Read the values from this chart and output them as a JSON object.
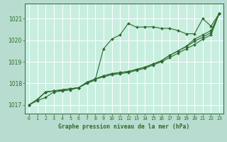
{
  "background_color": "#b8ddd0",
  "plot_bg_color": "#c8eee0",
  "grid_color": "#ffffff",
  "line_color": "#2d6a2d",
  "title": "Graphe pression niveau de la mer (hPa)",
  "xlim": [
    -0.5,
    23.5
  ],
  "ylim": [
    1016.6,
    1021.7
  ],
  "yticks": [
    1017,
    1018,
    1019,
    1020,
    1021
  ],
  "xticks": [
    0,
    1,
    2,
    3,
    4,
    5,
    6,
    7,
    8,
    9,
    10,
    11,
    12,
    13,
    14,
    15,
    16,
    17,
    18,
    19,
    20,
    21,
    22,
    23
  ],
  "series": [
    [
      1017.0,
      1017.2,
      1017.35,
      1017.6,
      1017.65,
      1017.7,
      1017.8,
      1018.0,
      1018.15,
      1019.6,
      1020.05,
      1020.25,
      1020.78,
      1020.6,
      1020.62,
      1020.62,
      1020.55,
      1020.55,
      1020.45,
      1020.3,
      1020.3,
      1021.0,
      1020.65,
      1021.25
    ],
    [
      1017.0,
      1017.25,
      1017.6,
      1017.65,
      1017.7,
      1017.75,
      1017.8,
      1018.05,
      1018.2,
      1018.3,
      1018.4,
      1018.45,
      1018.5,
      1018.6,
      1018.7,
      1018.85,
      1019.0,
      1019.2,
      1019.4,
      1019.6,
      1019.8,
      1020.05,
      1020.25,
      1021.25
    ],
    [
      1017.0,
      1017.25,
      1017.6,
      1017.65,
      1017.7,
      1017.75,
      1017.8,
      1018.05,
      1018.2,
      1018.35,
      1018.45,
      1018.5,
      1018.55,
      1018.65,
      1018.75,
      1018.9,
      1019.05,
      1019.3,
      1019.5,
      1019.7,
      1019.95,
      1020.15,
      1020.35,
      1021.25
    ],
    [
      1017.0,
      1017.25,
      1017.6,
      1017.65,
      1017.7,
      1017.75,
      1017.8,
      1018.05,
      1018.2,
      1018.35,
      1018.45,
      1018.5,
      1018.55,
      1018.65,
      1018.75,
      1018.9,
      1019.05,
      1019.3,
      1019.5,
      1019.72,
      1020.05,
      1020.25,
      1020.45,
      1021.25
    ]
  ],
  "marker": "D",
  "markersize": 2.0,
  "linewidth": 0.8
}
